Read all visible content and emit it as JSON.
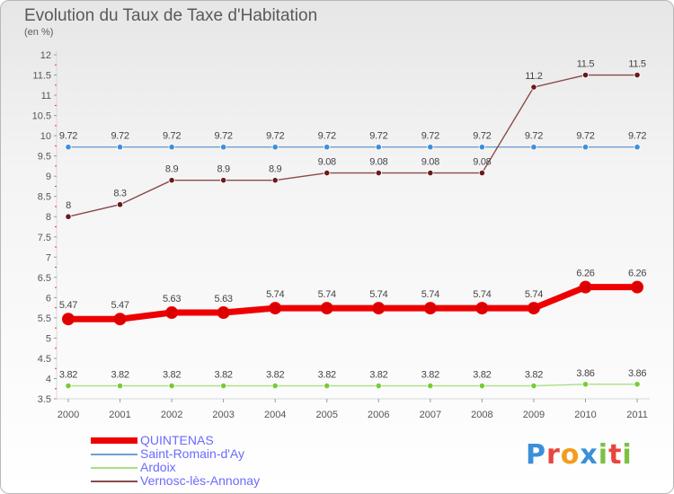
{
  "title": "Evolution du Taux de Taxe d'Habitation",
  "subtitle": "(en %)",
  "logo": {
    "text": "Proxiti",
    "letters": [
      {
        "ch": "P",
        "color": "#3a8fd9"
      },
      {
        "ch": "r",
        "color": "#e8453c"
      },
      {
        "ch": "o",
        "color": "#f39c1f"
      },
      {
        "ch": "x",
        "color": "#3a8fd9"
      },
      {
        "ch": "i",
        "color": "#7cc242"
      },
      {
        "ch": "t",
        "color": "#e8453c"
      },
      {
        "ch": "i",
        "color": "#7cc242"
      }
    ]
  },
  "chart_data": {
    "type": "line",
    "title": "Evolution du Taux de Taxe d'Habitation",
    "subtitle": "(en %)",
    "xlabel": "",
    "ylabel": "",
    "categories": [
      "2000",
      "2001",
      "2002",
      "2003",
      "2004",
      "2005",
      "2006",
      "2007",
      "2008",
      "2009",
      "2010",
      "2011"
    ],
    "ylim": [
      3.5,
      12
    ],
    "yticks": [
      "3.5",
      "4",
      "4.5",
      "5",
      "5.5",
      "6",
      "6.5",
      "7",
      "7.5",
      "8",
      "8.5",
      "9",
      "9.5",
      "10",
      "10.5",
      "11",
      "11.5",
      "12"
    ],
    "grid": false,
    "legend_position": "bottom-left",
    "series": [
      {
        "name": "QUINTENAS",
        "color": "#ee0000",
        "marker_color": "#dd0000",
        "thick": true,
        "values": [
          5.47,
          5.47,
          5.63,
          5.63,
          5.74,
          5.74,
          5.74,
          5.74,
          5.74,
          5.74,
          6.26,
          6.26
        ],
        "labels": [
          "5.47",
          "5.47",
          "5.63",
          "5.63",
          "5.74",
          "5.74",
          "5.74",
          "5.74",
          "5.74",
          "5.74",
          "6.26",
          "6.26"
        ]
      },
      {
        "name": "Saint-Romain-d'Ay",
        "color": "#6f9fcf",
        "marker_color": "#3f8fd9",
        "thick": false,
        "values": [
          9.72,
          9.72,
          9.72,
          9.72,
          9.72,
          9.72,
          9.72,
          9.72,
          9.72,
          9.72,
          9.72,
          9.72
        ],
        "labels": [
          "9.72",
          "9.72",
          "9.72",
          "9.72",
          "9.72",
          "9.72",
          "9.72",
          "9.72",
          "9.72",
          "9.72",
          "9.72",
          "9.72"
        ]
      },
      {
        "name": "Ardoix",
        "color": "#a8df80",
        "marker_color": "#77cc33",
        "thick": false,
        "values": [
          3.82,
          3.82,
          3.82,
          3.82,
          3.82,
          3.82,
          3.82,
          3.82,
          3.82,
          3.82,
          3.86,
          3.86
        ],
        "labels": [
          "3.82",
          "3.82",
          "3.82",
          "3.82",
          "3.82",
          "3.82",
          "3.82",
          "3.82",
          "3.82",
          "3.82",
          "3.86",
          "3.86"
        ]
      },
      {
        "name": "Vernosc-lès-Annonay",
        "color": "#8a4a4a",
        "marker_color": "#6a1a1a",
        "thick": false,
        "values": [
          8,
          8.3,
          8.9,
          8.9,
          8.9,
          9.08,
          9.08,
          9.08,
          9.08,
          11.2,
          11.5,
          11.5
        ],
        "labels": [
          "8",
          "8.3",
          "8.9",
          "8.9",
          "8.9",
          "9.08",
          "9.08",
          "9.08",
          "9.08",
          "11.2",
          "11.5",
          "11.5"
        ]
      }
    ]
  }
}
